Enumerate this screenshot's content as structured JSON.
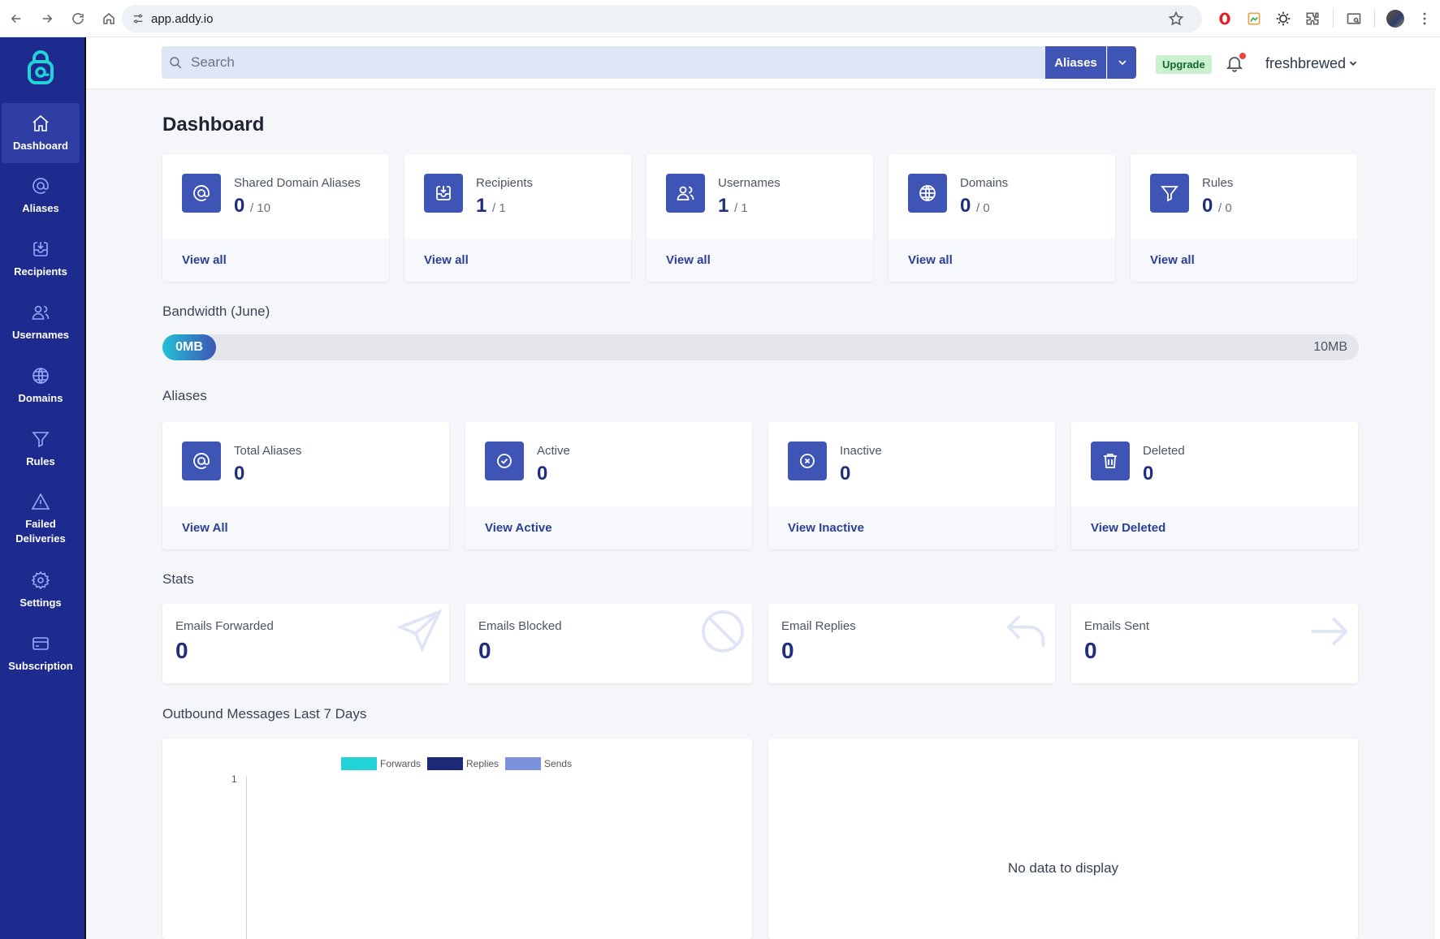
{
  "browser": {
    "url": "app.addy.io"
  },
  "sidebar": {
    "items": [
      {
        "label": "Dashboard",
        "icon": "home-icon",
        "active": true
      },
      {
        "label": "Aliases",
        "icon": "at-icon"
      },
      {
        "label": "Recipients",
        "icon": "inbox-icon"
      },
      {
        "label": "Usernames",
        "icon": "users-icon"
      },
      {
        "label": "Domains",
        "icon": "globe-icon"
      },
      {
        "label": "Rules",
        "icon": "filter-icon"
      },
      {
        "label": "Failed Deliveries",
        "icon": "warning-icon"
      },
      {
        "label": "Settings",
        "icon": "gear-icon"
      },
      {
        "label": "Subscription",
        "icon": "credit-card-icon"
      }
    ]
  },
  "header": {
    "search_placeholder": "Search",
    "search_scope": "Aliases",
    "upgrade_label": "Upgrade",
    "username": "freshbrewed"
  },
  "page": {
    "title": "Dashboard"
  },
  "summary_cards": [
    {
      "label": "Shared Domain Aliases",
      "value": "0",
      "limit": "/ 10",
      "link": "View all",
      "icon": "at-icon"
    },
    {
      "label": "Recipients",
      "value": "1",
      "limit": "/ 1",
      "link": "View all",
      "icon": "inbox-icon"
    },
    {
      "label": "Usernames",
      "value": "1",
      "limit": "/ 1",
      "link": "View all",
      "icon": "users-icon"
    },
    {
      "label": "Domains",
      "value": "0",
      "limit": "/ 0",
      "link": "View all",
      "icon": "globe-icon"
    },
    {
      "label": "Rules",
      "value": "0",
      "limit": "/ 0",
      "link": "View all",
      "icon": "filter-icon"
    }
  ],
  "bandwidth": {
    "title": "Bandwidth (June)",
    "used": "0MB",
    "max": "10MB"
  },
  "aliases": {
    "title": "Aliases",
    "cards": [
      {
        "label": "Total Aliases",
        "value": "0",
        "link": "View All",
        "icon": "at-icon"
      },
      {
        "label": "Active",
        "value": "0",
        "link": "View Active",
        "icon": "check-circle-icon"
      },
      {
        "label": "Inactive",
        "value": "0",
        "link": "View Inactive",
        "icon": "x-circle-icon"
      },
      {
        "label": "Deleted",
        "value": "0",
        "link": "View Deleted",
        "icon": "trash-icon"
      }
    ]
  },
  "stats": {
    "title": "Stats",
    "cards": [
      {
        "label": "Emails Forwarded",
        "value": "0",
        "icon": "paper-plane-icon"
      },
      {
        "label": "Emails Blocked",
        "value": "0",
        "icon": "ban-icon"
      },
      {
        "label": "Email Replies",
        "value": "0",
        "icon": "reply-icon"
      },
      {
        "label": "Emails Sent",
        "value": "0",
        "icon": "arrow-right-icon"
      }
    ]
  },
  "outbound": {
    "title": "Outbound Messages Last 7 Days",
    "no_data": "No data to display"
  },
  "chart_data": {
    "type": "bar",
    "y_ticks": [
      "1"
    ],
    "series": [
      {
        "name": "Forwards",
        "color": "#22d3d8",
        "values": []
      },
      {
        "name": "Replies",
        "color": "#1e2a78",
        "values": []
      },
      {
        "name": "Sends",
        "color": "#7b93dd",
        "values": []
      }
    ]
  }
}
